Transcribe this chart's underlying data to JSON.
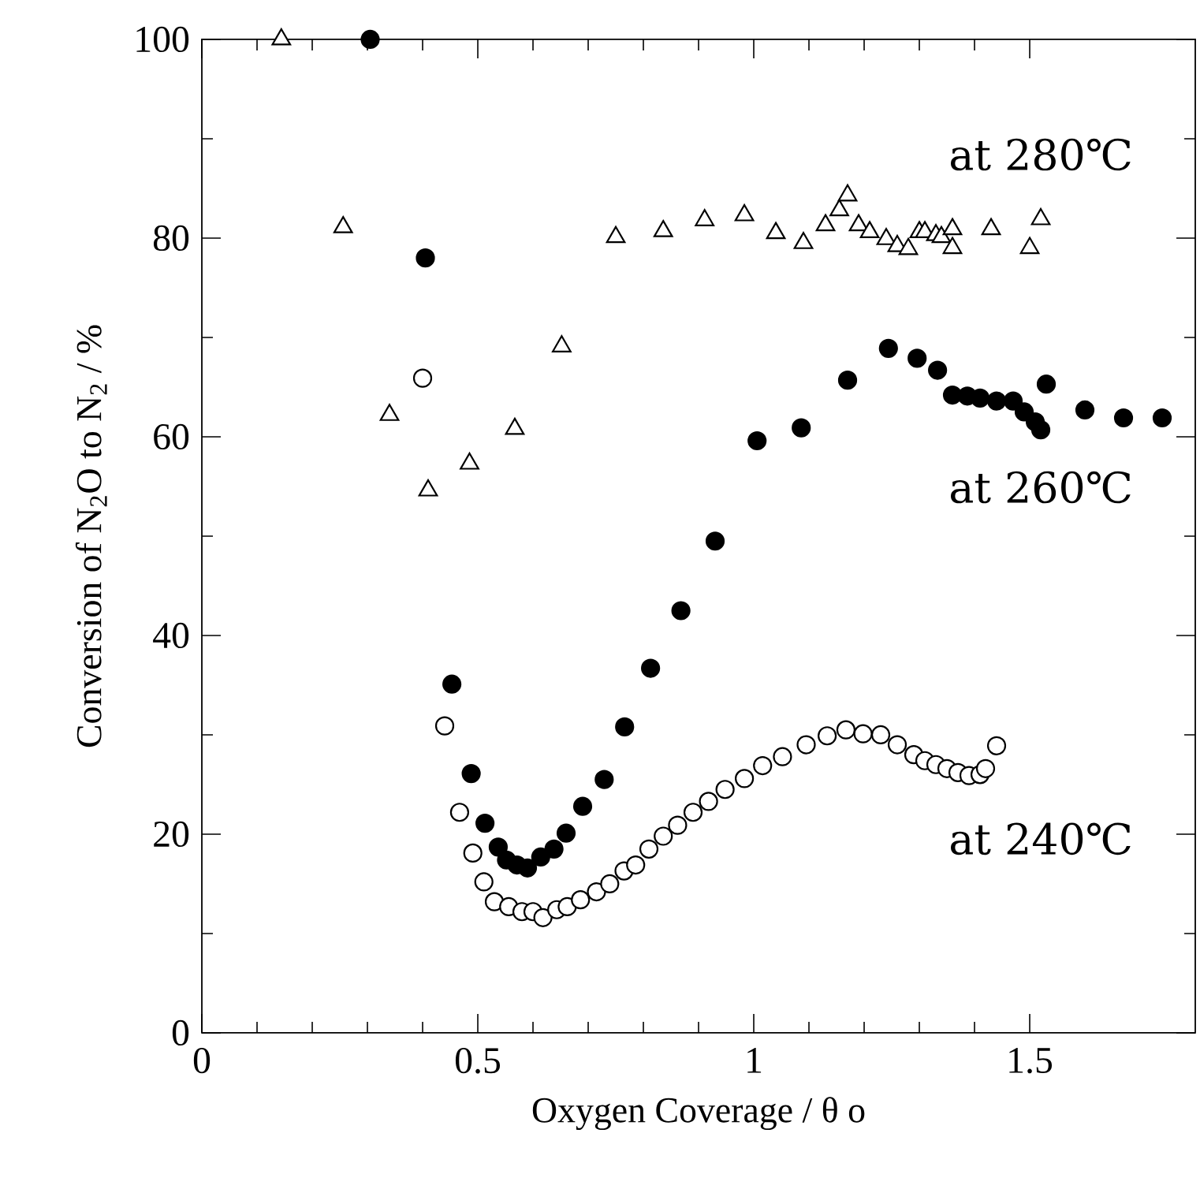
{
  "chart_data": {
    "type": "scatter",
    "xlabel": "Oxygen Coverage / θ o",
    "ylabel": "Conversion of N$_{2}$O to N$_{2}$ / %",
    "xlim": [
      0,
      1.8
    ],
    "ylim": [
      0,
      100
    ],
    "xticks": [
      0,
      0.5,
      1,
      1.5
    ],
    "yticks": [
      0,
      20,
      40,
      60,
      80,
      100
    ],
    "grid": false,
    "legend": "right",
    "series": [
      {
        "name": "at 240℃",
        "color": "#000000",
        "marker": "circle",
        "x": [
          0.4,
          0.44,
          0.467,
          0.491,
          0.511,
          0.53,
          0.556,
          0.58,
          0.6,
          0.618,
          0.643,
          0.662,
          0.686,
          0.715,
          0.739,
          0.765,
          0.786,
          0.81,
          0.836,
          0.862,
          0.89,
          0.918,
          0.948,
          0.983,
          1.016,
          1.052,
          1.095,
          1.133,
          1.167,
          1.198,
          1.23,
          1.26,
          1.29,
          1.31,
          1.33,
          1.35,
          1.37,
          1.39,
          1.41,
          1.42,
          1.44
        ],
        "values": [
          65.9,
          30.9,
          22.2,
          18.1,
          15.2,
          13.2,
          12.7,
          12.2,
          12.2,
          11.6,
          12.4,
          12.7,
          13.4,
          14.2,
          15.0,
          16.3,
          16.9,
          18.5,
          19.8,
          20.9,
          22.2,
          23.3,
          24.5,
          25.6,
          26.9,
          27.8,
          29.0,
          29.9,
          30.5,
          30.1,
          30.0,
          29.0,
          28.0,
          27.4,
          27.0,
          26.6,
          26.2,
          25.9,
          26.0,
          26.6,
          28.9
        ]
      },
      {
        "name": "at 260℃",
        "color": "#000000",
        "marker": "circle",
        "x": [
          0.305,
          0.405,
          0.453,
          0.488,
          0.513,
          0.537,
          0.552,
          0.571,
          0.59,
          0.614,
          0.638,
          0.66,
          0.69,
          0.729,
          0.766,
          0.813,
          0.868,
          0.93,
          1.006,
          1.086,
          1.17,
          1.244,
          1.296,
          1.333,
          1.36,
          1.387,
          1.41,
          1.44,
          1.47,
          1.49,
          1.51,
          1.52,
          1.53,
          1.6,
          1.67,
          1.74
        ],
        "values": [
          100,
          78,
          35.1,
          26.1,
          21.1,
          18.7,
          17.4,
          16.9,
          16.6,
          17.7,
          18.5,
          20.1,
          22.8,
          25.5,
          30.8,
          36.7,
          42.5,
          49.5,
          59.6,
          60.9,
          65.7,
          68.9,
          67.9,
          66.7,
          64.2,
          64.1,
          63.9,
          63.6,
          63.6,
          62.5,
          61.5,
          60.7,
          65.3,
          62.7,
          61.9,
          61.9
        ]
      },
      {
        "name": "at 280℃",
        "color": "#000000",
        "marker": "triangle",
        "x": [
          0.144,
          0.256,
          0.34,
          0.41,
          0.485,
          0.567,
          0.652,
          0.75,
          0.836,
          0.911,
          0.983,
          1.04,
          1.09,
          1.13,
          1.155,
          1.17,
          1.19,
          1.21,
          1.24,
          1.26,
          1.28,
          1.3,
          1.31,
          1.33,
          1.34,
          1.36,
          1.36,
          1.43,
          1.5,
          1.52
        ],
        "values": [
          100,
          81.1,
          62.2,
          54.6,
          57.3,
          60.8,
          69.1,
          80.1,
          80.7,
          81.8,
          82.3,
          80.5,
          79.5,
          81.3,
          82.8,
          84.3,
          81.3,
          80.6,
          79.9,
          79.2,
          78.9,
          80.6,
          80.6,
          80.3,
          80.1,
          80.9,
          79.0,
          80.9,
          79.0,
          81.9
        ]
      }
    ]
  }
}
